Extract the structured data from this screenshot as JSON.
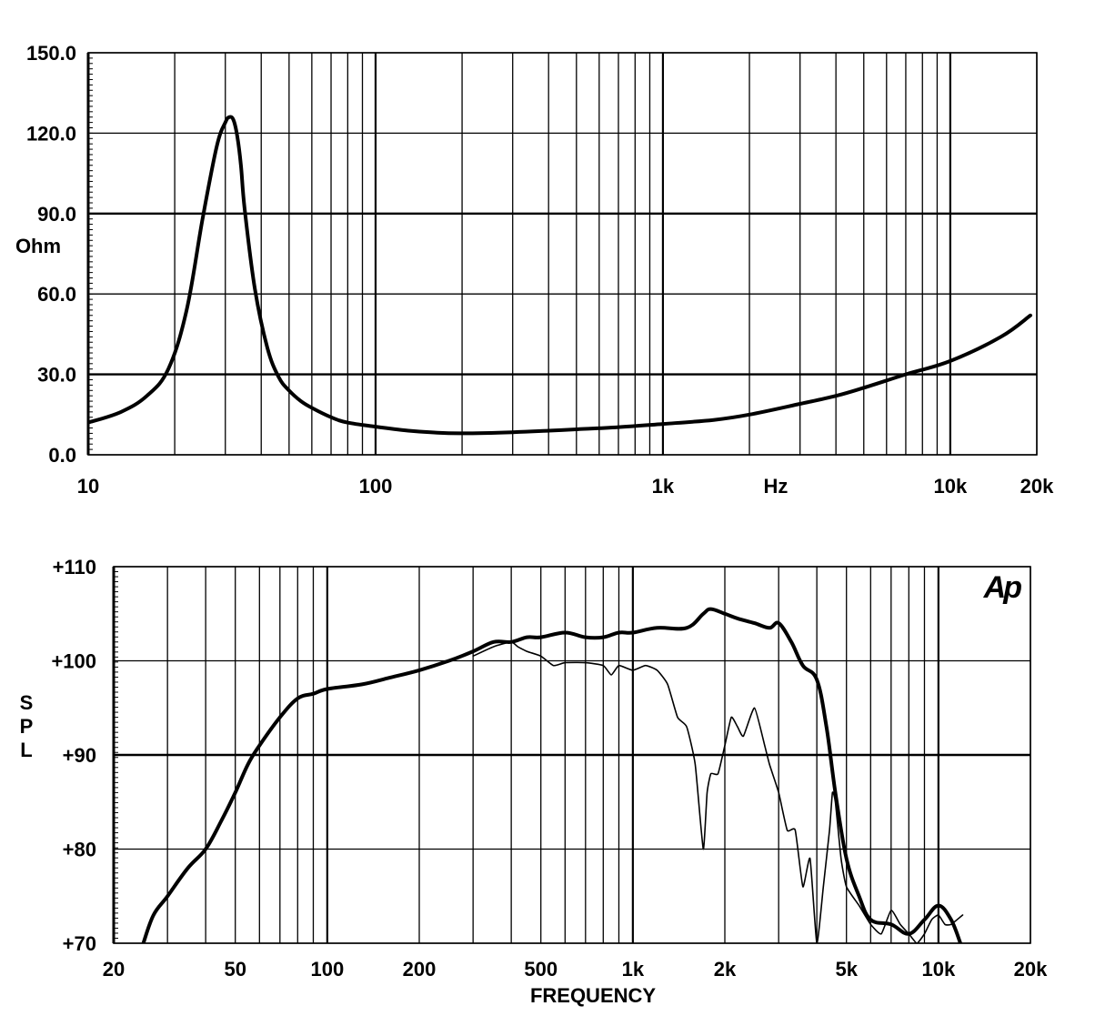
{
  "chart_data": [
    {
      "type": "line",
      "title": "",
      "ylabel": "Ohm",
      "xlabel": "Hz",
      "x_scale": "log",
      "xlim": [
        10,
        20000
      ],
      "ylim": [
        0,
        150
      ],
      "grid": true,
      "y_tick_labels": [
        "0.0",
        "30.0",
        "60.0",
        "90.0",
        "120.0",
        "150.0"
      ],
      "y_tick_values": [
        0,
        30,
        60,
        90,
        120,
        150
      ],
      "x_tick_labels": [
        "10",
        "100",
        "1k",
        "10k",
        "20k"
      ],
      "x_tick_values": [
        10,
        100,
        1000,
        10000,
        20000
      ],
      "series": [
        {
          "name": "",
          "x": [
            10,
            13,
            16,
            19,
            22,
            25,
            28,
            30,
            31,
            32,
            33,
            34,
            35,
            38,
            42,
            46,
            50,
            55,
            60,
            70,
            80,
            100,
            130,
            160,
            200,
            300,
            400,
            500,
            700,
            1000,
            1500,
            2000,
            3000,
            4000,
            5000,
            7000,
            10000,
            15000,
            19000
          ],
          "y": [
            12,
            16,
            22,
            32,
            54,
            88,
            115,
            124,
            126,
            125,
            119,
            108,
            92,
            62,
            40,
            29,
            24,
            20,
            17.5,
            14,
            12,
            10.5,
            9,
            8.3,
            8,
            8.4,
            9,
            9.5,
            10.3,
            11.5,
            13,
            15,
            19,
            22,
            25,
            30,
            35,
            44,
            52
          ]
        }
      ]
    },
    {
      "type": "line",
      "title": "",
      "ylabel": "S\nP\nL",
      "ylabel_letters": [
        "S",
        "P",
        "L"
      ],
      "xlabel": "FREQUENCY",
      "x_scale": "log",
      "xlim": [
        20,
        20000
      ],
      "ylim": [
        70,
        110
      ],
      "grid": true,
      "y_tick_labels": [
        "+70",
        "+80",
        "+90",
        "+100",
        "+110"
      ],
      "y_tick_values": [
        70,
        80,
        90,
        100,
        110
      ],
      "x_tick_labels": [
        "20",
        "50",
        "100",
        "200",
        "500",
        "1k",
        "2k",
        "5k",
        "10k",
        "20k"
      ],
      "x_tick_values": [
        20,
        50,
        100,
        200,
        500,
        1000,
        2000,
        5000,
        10000,
        20000
      ],
      "logo": "Ap",
      "series": [
        {
          "name": "",
          "style": "thick",
          "x": [
            25,
            27,
            30,
            35,
            40,
            45,
            50,
            55,
            60,
            70,
            80,
            90,
            100,
            130,
            160,
            200,
            250,
            300,
            350,
            400,
            450,
            500,
            600,
            700,
            800,
            900,
            1000,
            1200,
            1500,
            1700,
            1800,
            2000,
            2200,
            2500,
            2800,
            3000,
            3300,
            3600,
            4000,
            4300,
            4600,
            5000,
            5500,
            6000,
            7000,
            8000,
            9000,
            10000,
            11000,
            11800
          ],
          "y": [
            70,
            73,
            75,
            78,
            80,
            83,
            86,
            89,
            91,
            94,
            96,
            96.5,
            97,
            97.5,
            98.2,
            99,
            100,
            101,
            102,
            102,
            102.5,
            102.5,
            103,
            102.5,
            102.5,
            103,
            103,
            103.5,
            103.5,
            105,
            105.5,
            105,
            104.5,
            104,
            103.5,
            104,
            102,
            99.5,
            98,
            93,
            86,
            79,
            75,
            72.5,
            72,
            71,
            72.5,
            74,
            72.5,
            70
          ]
        },
        {
          "name": "",
          "style": "thin",
          "x": [
            300,
            350,
            400,
            420,
            450,
            500,
            550,
            600,
            700,
            800,
            850,
            900,
            1000,
            1100,
            1200,
            1300,
            1400,
            1500,
            1600,
            1700,
            1750,
            1800,
            1900,
            2000,
            2100,
            2200,
            2300,
            2500,
            2700,
            2800,
            3000,
            3200,
            3400,
            3600,
            3800,
            4000,
            4200,
            4400,
            4500,
            4600,
            4800,
            5000,
            5500,
            6000,
            6500,
            7000,
            7500,
            8000,
            8500,
            9000,
            9500,
            10000,
            10500,
            11000,
            12000
          ],
          "y": [
            100.5,
            101.5,
            102,
            101.5,
            101,
            100.5,
            99.5,
            99.8,
            99.8,
            99.5,
            98.5,
            99.5,
            99,
            99.5,
            99,
            97.5,
            94,
            93,
            89,
            80,
            86,
            88,
            88,
            91,
            94,
            93,
            92,
            95,
            91,
            89,
            86,
            82,
            82,
            76,
            79,
            70,
            76,
            82,
            86,
            85,
            79,
            76,
            74,
            72,
            71,
            73.5,
            72,
            71,
            70,
            71,
            72.5,
            73,
            72,
            72,
            73
          ]
        }
      ]
    }
  ]
}
